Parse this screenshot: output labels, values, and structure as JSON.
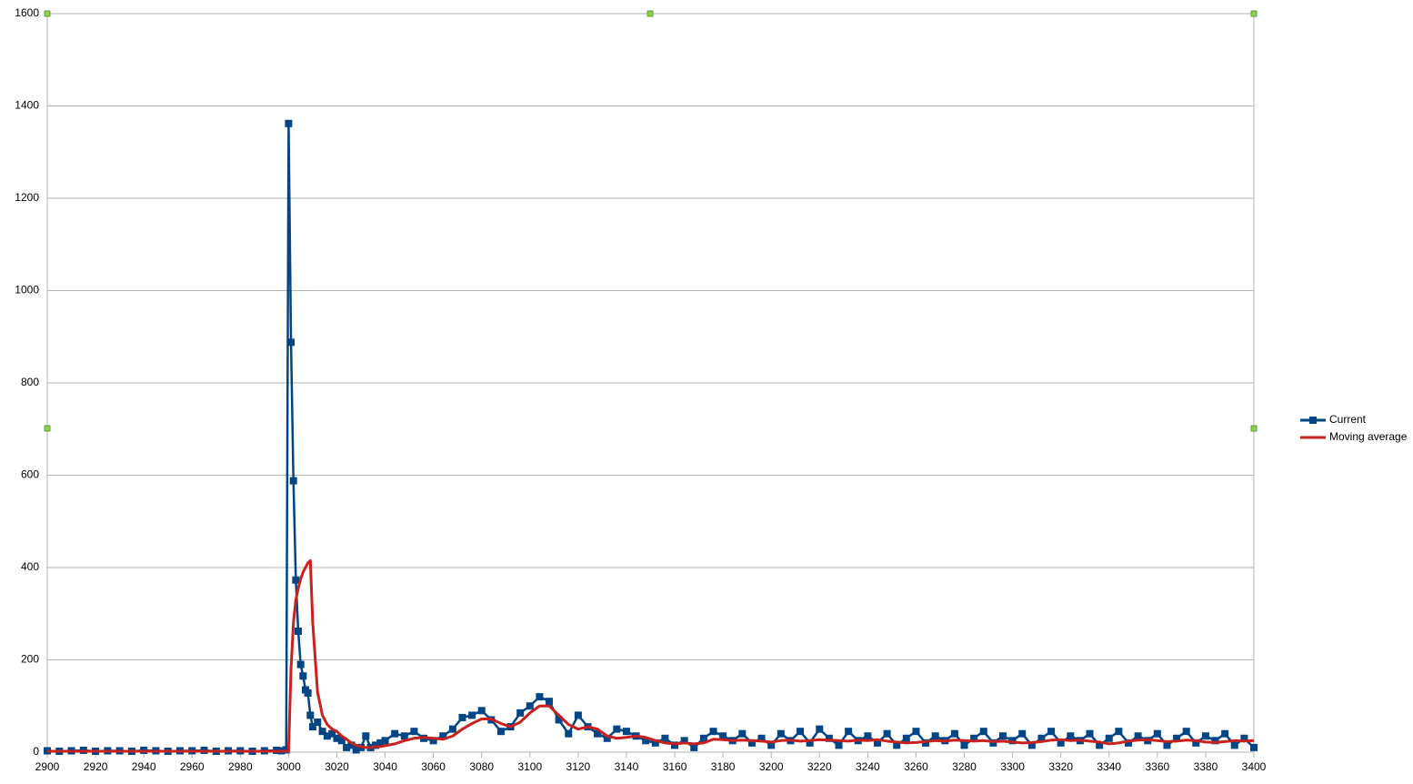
{
  "chart_data": {
    "type": "line",
    "x": [
      2900,
      2905,
      2910,
      2915,
      2920,
      2925,
      2930,
      2935,
      2940,
      2945,
      2950,
      2955,
      2960,
      2965,
      2970,
      2975,
      2980,
      2985,
      2990,
      2995,
      2997,
      2999,
      3000,
      3001,
      3002,
      3003,
      3004,
      3005,
      3006,
      3007,
      3008,
      3009,
      3010,
      3012,
      3014,
      3016,
      3018,
      3020,
      3022,
      3024,
      3026,
      3028,
      3030,
      3032,
      3034,
      3036,
      3038,
      3040,
      3044,
      3048,
      3052,
      3056,
      3060,
      3064,
      3068,
      3072,
      3076,
      3080,
      3084,
      3088,
      3092,
      3096,
      3100,
      3104,
      3108,
      3112,
      3116,
      3120,
      3124,
      3128,
      3132,
      3136,
      3140,
      3144,
      3148,
      3152,
      3156,
      3160,
      3164,
      3168,
      3172,
      3176,
      3180,
      3184,
      3188,
      3192,
      3196,
      3200,
      3204,
      3208,
      3212,
      3216,
      3220,
      3224,
      3228,
      3232,
      3236,
      3240,
      3244,
      3248,
      3252,
      3256,
      3260,
      3264,
      3268,
      3272,
      3276,
      3280,
      3284,
      3288,
      3292,
      3296,
      3300,
      3304,
      3308,
      3312,
      3316,
      3320,
      3324,
      3328,
      3332,
      3336,
      3340,
      3344,
      3348,
      3352,
      3356,
      3360,
      3364,
      3368,
      3372,
      3376,
      3380,
      3384,
      3388,
      3392,
      3396,
      3400
    ],
    "series": [
      {
        "name": "Current",
        "color": "#004586",
        "marker": "square",
        "values": [
          3,
          2,
          3,
          4,
          2,
          3,
          3,
          2,
          4,
          3,
          2,
          3,
          3,
          4,
          2,
          3,
          3,
          2,
          3,
          4,
          3,
          5,
          1362,
          888,
          588,
          373,
          262,
          190,
          165,
          135,
          128,
          80,
          55,
          65,
          45,
          35,
          40,
          30,
          25,
          10,
          15,
          5,
          10,
          35,
          10,
          15,
          20,
          25,
          40,
          35,
          45,
          30,
          25,
          35,
          50,
          75,
          80,
          90,
          70,
          45,
          55,
          85,
          100,
          120,
          110,
          70,
          40,
          80,
          55,
          40,
          30,
          50,
          45,
          35,
          25,
          20,
          30,
          15,
          25,
          10,
          30,
          45,
          35,
          25,
          40,
          20,
          30,
          15,
          40,
          25,
          45,
          20,
          50,
          30,
          15,
          45,
          25,
          35,
          20,
          40,
          15,
          30,
          45,
          20,
          35,
          25,
          40,
          15,
          30,
          45,
          20,
          35,
          25,
          40,
          15,
          30,
          45,
          20,
          35,
          25,
          40,
          15,
          30,
          45,
          20,
          35,
          25,
          40,
          15,
          30,
          45,
          20,
          35,
          25,
          40,
          15,
          30,
          10
        ]
      },
      {
        "name": "Moving average",
        "color": "#c9211e",
        "marker": "none",
        "values": [
          2,
          2,
          2,
          2,
          2,
          2,
          2,
          2,
          2,
          2,
          2,
          2,
          2,
          2,
          2,
          2,
          2,
          2,
          2,
          2,
          2,
          2,
          2,
          180,
          280,
          330,
          355,
          375,
          390,
          400,
          410,
          415,
          280,
          130,
          80,
          60,
          50,
          45,
          35,
          28,
          20,
          15,
          12,
          10,
          10,
          12,
          12,
          14,
          18,
          25,
          30,
          32,
          30,
          28,
          35,
          50,
          62,
          72,
          72,
          62,
          55,
          65,
          85,
          100,
          100,
          80,
          60,
          50,
          55,
          50,
          35,
          30,
          32,
          35,
          32,
          25,
          20,
          18,
          20,
          18,
          20,
          28,
          27,
          25,
          26,
          25,
          24,
          22,
          25,
          26,
          24,
          25,
          27,
          26,
          25,
          24,
          26,
          25,
          27,
          24,
          22,
          20,
          21,
          23,
          25,
          24,
          26,
          25,
          24,
          25,
          23,
          24,
          22,
          20,
          21,
          23,
          26,
          27,
          25,
          26,
          24,
          22,
          18,
          20,
          24,
          26,
          27,
          25,
          23,
          24,
          26,
          25,
          22,
          21,
          23,
          25,
          24,
          25
        ]
      }
    ],
    "xlim": [
      2900,
      3400
    ],
    "xticks": [
      2900,
      2920,
      2940,
      2960,
      2980,
      3000,
      3020,
      3040,
      3060,
      3080,
      3100,
      3120,
      3140,
      3160,
      3180,
      3200,
      3220,
      3240,
      3260,
      3280,
      3300,
      3320,
      3340,
      3360,
      3380,
      3400
    ],
    "ylim": [
      0,
      1600
    ],
    "yticks": [
      0,
      200,
      400,
      600,
      800,
      1000,
      1200,
      1400,
      1600
    ],
    "grid": true,
    "legend": "right"
  }
}
